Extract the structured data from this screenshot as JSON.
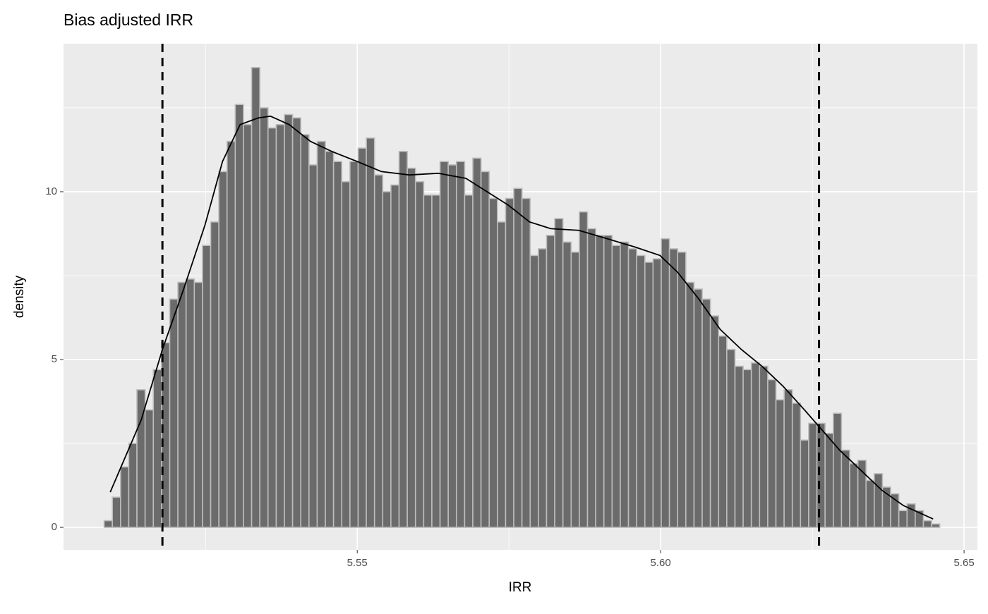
{
  "chart_data": {
    "type": "histogram",
    "title": "Bias adjusted IRR",
    "x_label": "IRR",
    "y_label": "density",
    "bins": [
      5.5083,
      5.50965,
      5.511,
      5.51235,
      5.5137,
      5.51505,
      5.5164,
      5.51775,
      5.5191,
      5.52045,
      5.5218,
      5.52315,
      5.5245,
      5.52585,
      5.5272,
      5.52855,
      5.5299,
      5.53125,
      5.5326,
      5.53395,
      5.5353,
      5.53665,
      5.538,
      5.53935,
      5.5407,
      5.54205,
      5.5434,
      5.54475,
      5.5461,
      5.54745,
      5.5488,
      5.55015,
      5.5515,
      5.55285,
      5.5542,
      5.55555,
      5.5569,
      5.55825,
      5.5596,
      5.56095,
      5.5623,
      5.56365,
      5.565,
      5.56635,
      5.5677,
      5.56905,
      5.5704,
      5.57175,
      5.5731,
      5.57445,
      5.5758,
      5.57715,
      5.5785,
      5.57985,
      5.5812,
      5.58255,
      5.5839,
      5.58525,
      5.5866,
      5.58795,
      5.5893,
      5.59065,
      5.592,
      5.59335,
      5.5947,
      5.59605,
      5.5974,
      5.59875,
      5.6001,
      5.60145,
      5.6028,
      5.60415,
      5.6055,
      5.60685,
      5.6082,
      5.60955,
      5.6109,
      5.61225,
      5.6136,
      5.61495,
      5.6163,
      5.61765,
      5.619,
      5.62035,
      5.6217,
      5.62305,
      5.6244,
      5.62575,
      5.6271,
      5.62845,
      5.6298,
      5.63115,
      5.6325,
      5.63385,
      5.6352,
      5.63655,
      5.6379,
      5.63925,
      5.6406,
      5.64195,
      5.6433,
      5.64465,
      5.646
    ],
    "values": [
      0.2,
      0.9,
      1.8,
      2.5,
      4.1,
      3.5,
      4.7,
      5.5,
      6.8,
      7.3,
      7.4,
      7.3,
      8.4,
      9.1,
      10.6,
      11.5,
      12.6,
      12.0,
      13.7,
      12.5,
      11.9,
      12.0,
      12.3,
      12.2,
      11.7,
      10.8,
      11.5,
      11.2,
      10.9,
      10.3,
      10.9,
      11.3,
      11.6,
      10.5,
      10.0,
      10.2,
      11.2,
      10.7,
      10.3,
      9.9,
      9.9,
      10.9,
      10.8,
      10.9,
      9.9,
      11.0,
      10.6,
      9.8,
      9.1,
      9.8,
      10.1,
      9.8,
      8.1,
      8.3,
      8.7,
      9.2,
      8.5,
      8.2,
      9.4,
      8.9,
      8.7,
      8.7,
      8.4,
      8.5,
      8.3,
      8.1,
      7.9,
      8.0,
      8.6,
      8.3,
      8.2,
      7.3,
      7.1,
      6.8,
      6.3,
      5.7,
      5.3,
      4.8,
      4.7,
      4.9,
      4.8,
      4.4,
      3.8,
      4.1,
      3.7,
      2.6,
      3.1,
      3.1,
      2.8,
      3.4,
      2.3,
      1.9,
      2.0,
      1.4,
      1.6,
      1.2,
      1.0,
      0.5,
      0.7,
      0.5,
      0.2,
      0.1
    ],
    "color": "#6b6b6b",
    "edgecolor": "#bdbdbd",
    "density": {
      "color": "#000000",
      "x": [
        5.5093,
        5.5144,
        5.5179,
        5.5214,
        5.5249,
        5.5278,
        5.5307,
        5.5337,
        5.5357,
        5.5388,
        5.5423,
        5.5458,
        5.55,
        5.554,
        5.5586,
        5.5633,
        5.5679,
        5.5714,
        5.5749,
        5.5784,
        5.5819,
        5.5865,
        5.5912,
        5.5958,
        5.5999,
        5.6028,
        5.6063,
        5.6098,
        5.6133,
        5.6167,
        5.6202,
        5.6237,
        5.6266,
        5.6295,
        5.633,
        5.6365,
        5.64,
        5.6449
      ],
      "y": [
        1.05,
        3.2,
        5.3,
        7.1,
        9.0,
        10.9,
        12.0,
        12.2,
        12.25,
        12.0,
        11.5,
        11.2,
        10.9,
        10.6,
        10.5,
        10.55,
        10.4,
        10.0,
        9.6,
        9.1,
        8.9,
        8.85,
        8.6,
        8.35,
        8.1,
        7.6,
        6.8,
        5.9,
        5.3,
        4.8,
        4.2,
        3.5,
        2.9,
        2.3,
        1.7,
        1.1,
        0.65,
        0.25
      ]
    },
    "vlines": [
      5.5179,
      5.6261
    ],
    "vline_color": "#000000",
    "vline_style": "dashed",
    "xlim": [
      5.5016,
      5.6522
    ],
    "ylim": [
      -0.67,
      14.41
    ],
    "xticks": [
      5.55,
      {
        "value": 5.6,
        "label": "5.60"
      },
      5.65
    ],
    "yticks": [
      0,
      5,
      10
    ],
    "xminor": [
      5.525,
      5.575,
      5.625
    ],
    "yminor": [
      2.5,
      7.5,
      12.5
    ],
    "grid": true
  }
}
